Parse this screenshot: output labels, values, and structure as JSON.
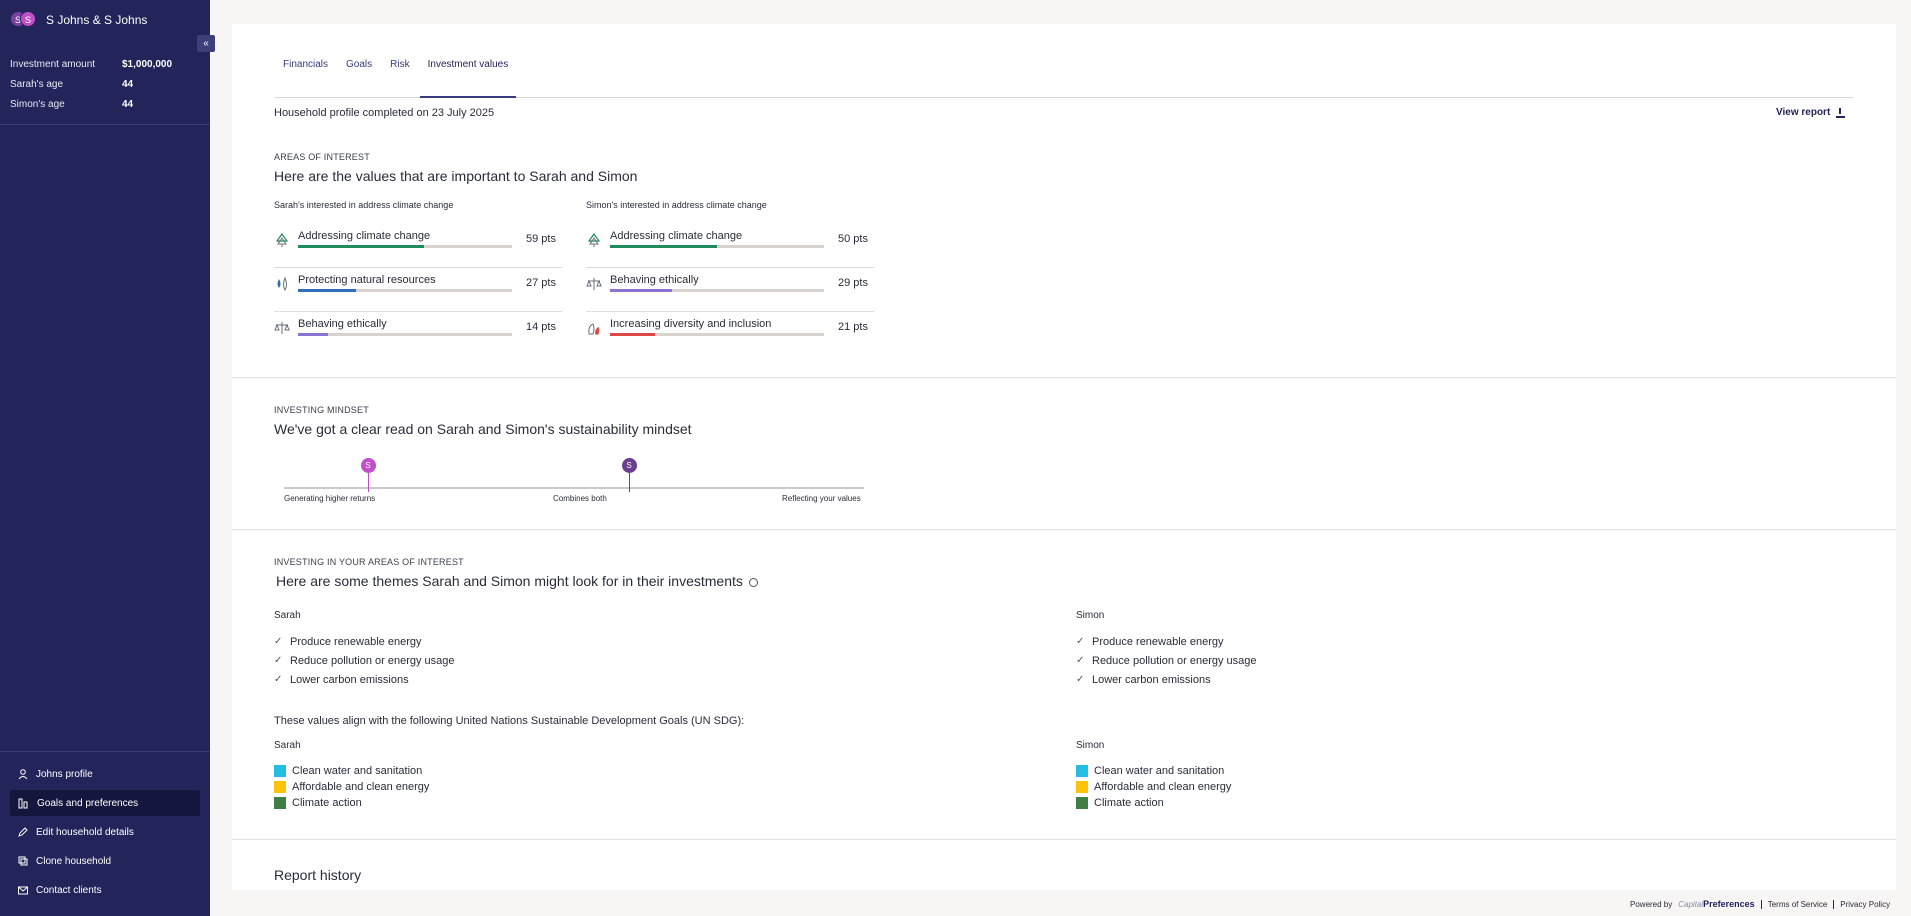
{
  "sidebar": {
    "avatars": [
      "S",
      "S"
    ],
    "household_name": "S Johns & S Johns",
    "collapse_icon": "«",
    "info": [
      {
        "label": "Investment amount",
        "value": "$1,000,000"
      },
      {
        "label": "Sarah's age",
        "value": "44"
      },
      {
        "label": "Simon's age",
        "value": "44"
      }
    ],
    "nav": [
      {
        "label": "Johns profile",
        "icon": "user-icon"
      },
      {
        "label": "Goals and preferences",
        "icon": "chart-icon",
        "active": true
      },
      {
        "label": "Edit household details",
        "icon": "pencil-icon"
      },
      {
        "label": "Clone household",
        "icon": "copy-icon"
      },
      {
        "label": "Contact clients",
        "icon": "mail-icon"
      }
    ]
  },
  "tabs": [
    {
      "label": "Financials"
    },
    {
      "label": "Goals"
    },
    {
      "label": "Risk"
    },
    {
      "label": "Investment values",
      "active": true
    }
  ],
  "profile_completed": "Household profile completed on 23 July 2025",
  "view_report_label": "View report",
  "areas": {
    "eyebrow": "AREAS OF INTEREST",
    "heading": "Here are the values that are important to Sarah and Simon",
    "sarah": {
      "title": "Sarah's interested in address climate change",
      "items": [
        {
          "label": "Addressing climate change",
          "points": "59 pts",
          "value": 59,
          "color": "#1f8a5b",
          "icon": "tree-icon"
        },
        {
          "label": "Protecting natural resources",
          "points": "27 pts",
          "value": 27,
          "color": "#2d6fb8",
          "icon": "water-drop-icon"
        },
        {
          "label": "Behaving ethically",
          "points": "14 pts",
          "value": 14,
          "color": "#8b72d1",
          "icon": "scales-icon"
        }
      ]
    },
    "simon": {
      "title": "Simon's interested in address climate change",
      "items": [
        {
          "label": "Addressing climate change",
          "points": "50 pts",
          "value": 50,
          "color": "#1f8a5b",
          "icon": "tree-icon"
        },
        {
          "label": "Behaving ethically",
          "points": "29 pts",
          "value": 29,
          "color": "#8b72d1",
          "icon": "scales-icon"
        },
        {
          "label": "Increasing diversity and inclusion",
          "points": "21 pts",
          "value": 21,
          "color": "#e04848",
          "icon": "hands-icon"
        }
      ]
    }
  },
  "mindset": {
    "eyebrow": "INVESTING MINDSET",
    "heading": "We've got a clear read on Sarah and Simon's sustainability mindset",
    "labels": [
      "Generating higher returns",
      "Combines both",
      "Reflecting your values"
    ],
    "pins": [
      {
        "initial": "S",
        "color": "#c04fc9",
        "position": 0.145
      },
      {
        "initial": "S",
        "color": "#6b3f8e",
        "position": 0.595
      }
    ]
  },
  "themes": {
    "eyebrow": "INVESTING IN YOUR AREAS OF INTEREST",
    "heading": "Here are some themes Sarah and Simon might look for in their investments",
    "sarah": {
      "name": "Sarah",
      "items": [
        "Produce renewable energy",
        "Reduce pollution or energy usage",
        "Lower carbon emissions"
      ]
    },
    "simon": {
      "name": "Simon",
      "items": [
        "Produce renewable energy",
        "Reduce pollution or energy usage",
        "Lower carbon emissions"
      ]
    },
    "sdg_intro": "These values align with the following United Nations Sustainable Development Goals (UN SDG):",
    "sdg_sarah": {
      "name": "Sarah",
      "items": [
        {
          "label": "Clean water and sanitation",
          "color": "#26bde2"
        },
        {
          "label": "Affordable and clean energy",
          "color": "#fcc30b"
        },
        {
          "label": "Climate action",
          "color": "#3f7e44"
        }
      ]
    },
    "sdg_simon": {
      "name": "Simon",
      "items": [
        {
          "label": "Clean water and sanitation",
          "color": "#26bde2"
        },
        {
          "label": "Affordable and clean energy",
          "color": "#fcc30b"
        },
        {
          "label": "Climate action",
          "color": "#3f7e44"
        }
      ]
    }
  },
  "report_history": "Report history",
  "footer": {
    "powered_by": "Powered by",
    "brand_prefix": "Capital",
    "brand": "Preferences",
    "terms": "Terms of Service",
    "privacy": "Privacy Policy"
  }
}
